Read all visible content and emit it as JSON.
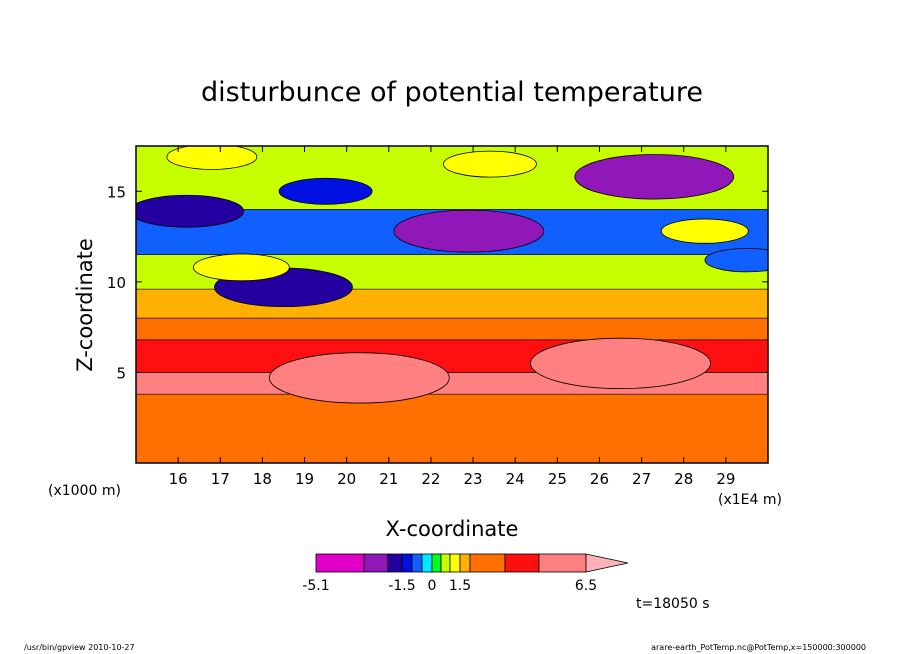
{
  "chart_data": {
    "type": "heatmap",
    "title": "disturbunce of potential temperature",
    "xlabel": "X-coordinate",
    "ylabel": "Z-coordinate",
    "x_unit_label": "(x1E4 m)",
    "y_unit_label": "(x1000 m)",
    "xlim": [
      15.0,
      30.0
    ],
    "ylim": [
      0.0,
      17.5
    ],
    "x_ticks": [
      16,
      17,
      18,
      19,
      20,
      21,
      22,
      23,
      24,
      25,
      26,
      27,
      28,
      29
    ],
    "y_ticks": [
      5,
      10,
      15
    ],
    "colorbar": {
      "levels": [
        -5.1,
        -3.6,
        -3.0,
        -1.5,
        -1.0,
        -0.5,
        0,
        0.5,
        1.0,
        1.5,
        2.5,
        3.5,
        5.0,
        6.5
      ],
      "tick_labels": [
        "-5.1",
        "-1.5",
        "0",
        "1.5",
        "6.5"
      ],
      "tick_values": [
        -5.1,
        -1.5,
        0,
        1.5,
        6.5
      ],
      "colors": [
        "#e000c8",
        "#9018b8",
        "#2400a0",
        "#0010e0",
        "#1060ff",
        "#00e8ff",
        "#00ff20",
        "#c8ff00",
        "#ffff00",
        "#ffb000",
        "#ff7000",
        "#ff1010",
        "#ff8080",
        "#ffb0b8"
      ]
    },
    "band_values": [
      {
        "z_top": 3.8,
        "value": 2.5
      },
      {
        "z_top": 5.0,
        "value": 5.0
      },
      {
        "z_top": 6.8,
        "value": 3.5
      },
      {
        "z_top": 8.0,
        "value": 2.5
      },
      {
        "z_top": 9.6,
        "value": 1.5
      },
      {
        "z_top": 11.5,
        "value": 0.5
      },
      {
        "z_top": 14.0,
        "value": -1.0
      },
      {
        "z_top": 17.5,
        "value": 0.8
      }
    ],
    "features": [
      {
        "x": 20.3,
        "z": 4.7,
        "value": 6.0
      },
      {
        "x": 26.5,
        "z": 5.5,
        "value": 6.2
      },
      {
        "x": 27.3,
        "z": 15.8,
        "value": -3.5
      },
      {
        "x": 22.9,
        "z": 12.8,
        "value": -3.2
      },
      {
        "x": 16.2,
        "z": 13.9,
        "value": -2.0
      },
      {
        "x": 19.5,
        "z": 15.0,
        "value": -1.3
      },
      {
        "x": 18.5,
        "z": 9.7,
        "value": -2.8
      },
      {
        "x": 23.4,
        "z": 16.5,
        "value": 1.3
      },
      {
        "x": 16.8,
        "z": 16.9,
        "value": 1.2
      },
      {
        "x": 17.5,
        "z": 10.8,
        "value": 1.4
      },
      {
        "x": 28.5,
        "z": 12.8,
        "value": 1.1
      },
      {
        "x": 29.5,
        "z": 11.2,
        "value": -1.0
      }
    ]
  },
  "labels": {
    "time": "t=18050 s",
    "footer_left": "/usr/bin/gpview   2010-10-27",
    "footer_right": "arare-earth_PotTemp.nc@PotTemp,x=150000:300000"
  }
}
